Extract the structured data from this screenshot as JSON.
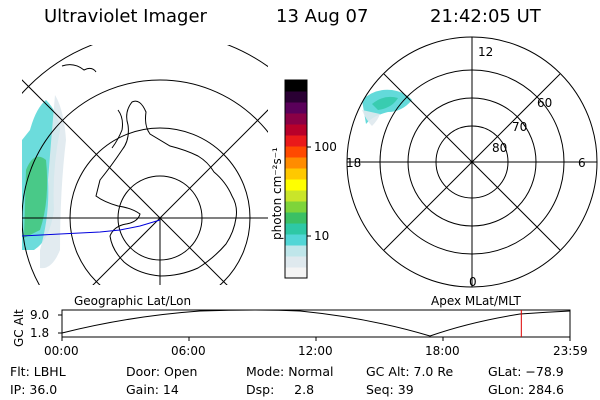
{
  "header": {
    "instrument": "Ultraviolet Imager",
    "date": "13 Aug 07",
    "time": "21:42:05 UT"
  },
  "colorbar": {
    "label": "photon cm⁻²s⁻¹",
    "tick_100": "100",
    "tick_10": "10",
    "colors": [
      "#f4f4f4",
      "#dfe9ee",
      "#bfe6ea",
      "#52d6d6",
      "#2ec8a5",
      "#3bc064",
      "#7ed43a",
      "#c9e52a",
      "#ffff00",
      "#ffc800",
      "#ff8c00",
      "#ff4a00",
      "#ea1a1a",
      "#b8002a",
      "#8a0045",
      "#5a005a",
      "#2a0033",
      "#000000"
    ]
  },
  "geo_panel": {
    "label": "Geographic Lat/Lon"
  },
  "mlt_panel": {
    "label": "Apex MLat/MLT",
    "mlt_top": "12",
    "mlt_bottom": "0",
    "mlt_left": "18",
    "mlt_right": "6",
    "lat_60": "60",
    "lat_70": "70",
    "lat_80": "80"
  },
  "altitude_plot": {
    "ylabel": "GC Alt",
    "ytick_high": "9.0",
    "ytick_low": "1.8",
    "xticks": [
      "00:00",
      "06:00",
      "12:00",
      "18:00",
      "23:59"
    ],
    "current_time_marker_hours": 21.7
  },
  "info": {
    "filter": "Flt: LBHL",
    "ip": "IP: 36.0",
    "door": "Door: Open",
    "gain": "Gain: 14",
    "mode": "Mode: Normal",
    "dsp": "Dsp:     2.8",
    "gc_alt": "GC Alt: 7.0 Re",
    "seq": "Seq: 39",
    "glat": "GLat: −78.9",
    "glon": "GLon: 284.6"
  }
}
